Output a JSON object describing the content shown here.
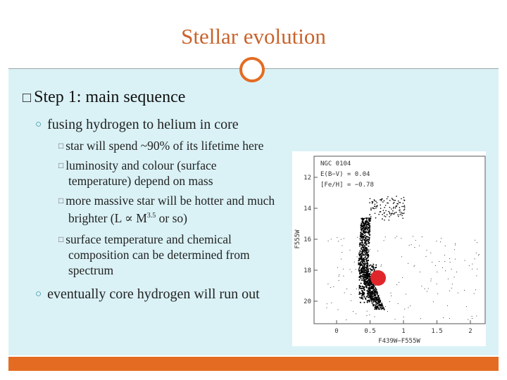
{
  "title": "Stellar evolution",
  "heading": "Step 1: main sequence",
  "points": [
    {
      "text": "fusing hydrogen to helium in core",
      "subpoints": [
        {
          "text": "star will spend ~90% of its lifetime here"
        },
        {
          "text": "luminosity and colour (surface temperature) depend on mass"
        },
        {
          "text": "more massive star will be hotter and much brighter (L ∝ M",
          "superscript": "3.5",
          "after": " or so)"
        },
        {
          "text": "surface temperature and chemical composition can be determined from spectrum"
        }
      ]
    },
    {
      "text": "eventually core hydrogen will run out"
    }
  ],
  "figure": {
    "labels": [
      "NGC 0104",
      "E(B−V) = 0.04",
      "[Fe/H] = −0.78"
    ],
    "x_axis_label": "F439W−F555W",
    "y_axis_label": "F555W",
    "xticks": [
      0,
      0.5,
      1,
      1.5,
      2
    ],
    "yticks": [
      12,
      14,
      16,
      18,
      20
    ]
  }
}
